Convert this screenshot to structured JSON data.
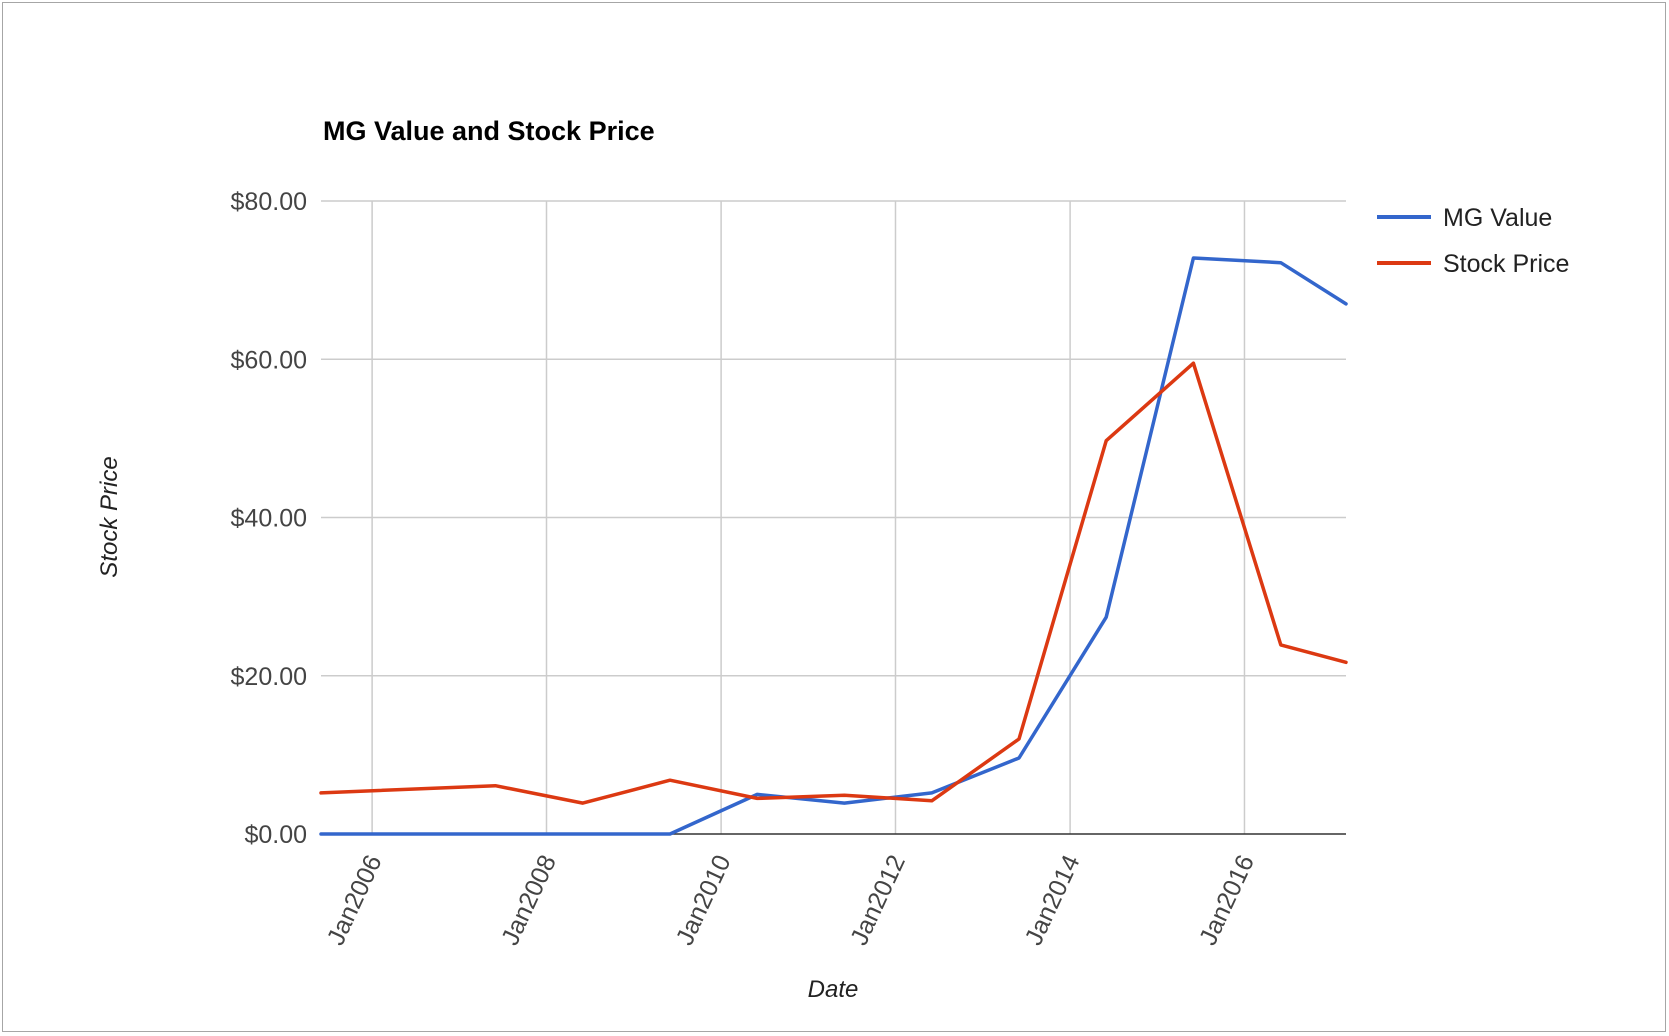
{
  "chart_data": {
    "type": "line",
    "title": "MG Value and Stock Price",
    "xlabel": "Date",
    "ylabel": "Stock Price",
    "x_range": [
      "2005-06-01",
      "2017-03-01"
    ],
    "x_ticks": [
      {
        "date": "2006-01-01",
        "label": "Jan2006"
      },
      {
        "date": "2008-01-01",
        "label": "Jan2008"
      },
      {
        "date": "2010-01-01",
        "label": "Jan2010"
      },
      {
        "date": "2012-01-01",
        "label": "Jan2012"
      },
      {
        "date": "2014-01-01",
        "label": "Jan2014"
      },
      {
        "date": "2016-01-01",
        "label": "Jan2016"
      }
    ],
    "ylim": [
      0,
      80
    ],
    "y_ticks": [
      {
        "value": 0,
        "label": "$0.00"
      },
      {
        "value": 20,
        "label": "$20.00"
      },
      {
        "value": 40,
        "label": "$40.00"
      },
      {
        "value": 60,
        "label": "$60.00"
      },
      {
        "value": 80,
        "label": "$80.00"
      }
    ],
    "grid": true,
    "legend_position": "right",
    "series": [
      {
        "name": "MG Value",
        "color": "#3366cc",
        "points": [
          {
            "x": "2005-06-01",
            "y": 0
          },
          {
            "x": "2007-06-01",
            "y": 0
          },
          {
            "x": "2008-06-01",
            "y": 0
          },
          {
            "x": "2009-06-01",
            "y": 0
          },
          {
            "x": "2010-06-01",
            "y": 5
          },
          {
            "x": "2011-06-01",
            "y": 3.9
          },
          {
            "x": "2012-06-01",
            "y": 5.2
          },
          {
            "x": "2013-06-01",
            "y": 9.6
          },
          {
            "x": "2014-06-01",
            "y": 27.4
          },
          {
            "x": "2015-06-01",
            "y": 72.8
          },
          {
            "x": "2016-06-01",
            "y": 72.2
          },
          {
            "x": "2017-03-01",
            "y": 67
          }
        ]
      },
      {
        "name": "Stock Price",
        "color": "#dc3912",
        "points": [
          {
            "x": "2005-06-01",
            "y": 5.2
          },
          {
            "x": "2007-06-01",
            "y": 6.1
          },
          {
            "x": "2008-06-01",
            "y": 3.9
          },
          {
            "x": "2009-06-01",
            "y": 6.8
          },
          {
            "x": "2010-06-01",
            "y": 4.5
          },
          {
            "x": "2011-06-01",
            "y": 4.9
          },
          {
            "x": "2012-06-01",
            "y": 4.2
          },
          {
            "x": "2013-06-01",
            "y": 12
          },
          {
            "x": "2014-06-01",
            "y": 49.7
          },
          {
            "x": "2015-06-01",
            "y": 59.5
          },
          {
            "x": "2016-06-01",
            "y": 23.9
          },
          {
            "x": "2017-03-01",
            "y": 21.7
          }
        ]
      }
    ]
  }
}
